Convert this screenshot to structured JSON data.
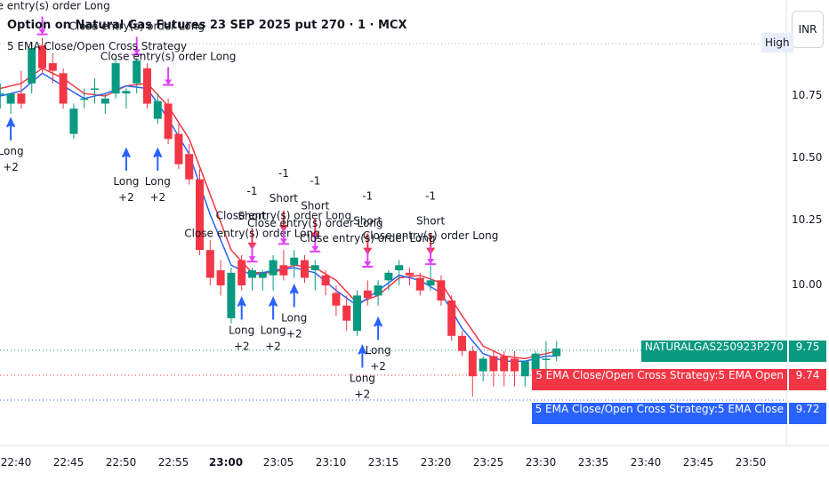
{
  "header": {
    "title": "Option on Natural Gas Futures 23 SEP 2025 put 270 · 1 · MCX",
    "indicator": "5 EMA Close/Open Cross Strategy"
  },
  "currency_button": "INR",
  "high_label": "High",
  "price_tags": [
    {
      "name": "NATURALGAS250923P270",
      "value": "9.75",
      "color": "#089981"
    },
    {
      "name": "5 EMA Close/Open Cross Strategy:5 EMA Open",
      "value": "9.74",
      "color": "#f23645"
    },
    {
      "name": "5 EMA Close/Open Cross Strategy:5 EMA Close",
      "value": "9.72",
      "color": "#2962ff"
    }
  ],
  "colors": {
    "up": "#089981",
    "down": "#f23645",
    "ema_open": "#f23645",
    "ema_close": "#2962ff",
    "long_marker": "#2962ff",
    "short_marker": "#f23645",
    "close_marker": "#e040fb"
  },
  "chart_data": {
    "type": "candlestick",
    "y_ticks": [
      "10.75",
      "10.50",
      "10.25",
      "10.00"
    ],
    "ylim": [
      9.42,
      10.98
    ],
    "x_ticks": [
      {
        "label": "22:40",
        "minute": 0
      },
      {
        "label": "22:45",
        "minute": 5
      },
      {
        "label": "22:50",
        "minute": 10
      },
      {
        "label": "22:55",
        "minute": 15
      },
      {
        "label": "23:00",
        "minute": 20,
        "bold": true
      },
      {
        "label": "23:05",
        "minute": 25
      },
      {
        "label": "23:10",
        "minute": 30
      },
      {
        "label": "23:15",
        "minute": 35
      },
      {
        "label": "23:20",
        "minute": 40
      },
      {
        "label": "23:25",
        "minute": 45
      },
      {
        "label": "23:30",
        "minute": 50
      },
      {
        "label": "23:35",
        "minute": 55
      },
      {
        "label": "23:40",
        "minute": 60
      },
      {
        "label": "23:45",
        "minute": 65
      },
      {
        "label": "23:50",
        "minute": 70
      }
    ],
    "candles": [
      {
        "t": -1.5,
        "o": 10.76,
        "h": 10.8,
        "l": 10.7,
        "c": 10.76
      },
      {
        "t": -0.5,
        "o": 10.72,
        "h": 10.76,
        "l": 10.68,
        "c": 10.76
      },
      {
        "t": 0.5,
        "o": 10.76,
        "h": 10.85,
        "l": 10.7,
        "c": 10.72
      },
      {
        "t": 1.5,
        "o": 10.8,
        "h": 10.96,
        "l": 10.76,
        "c": 10.94
      },
      {
        "t": 2.5,
        "o": 10.95,
        "h": 10.98,
        "l": 10.84,
        "c": 10.86
      },
      {
        "t": 3.5,
        "o": 10.88,
        "h": 10.92,
        "l": 10.8,
        "c": 10.85
      },
      {
        "t": 4.5,
        "o": 10.84,
        "h": 10.86,
        "l": 10.7,
        "c": 10.72
      },
      {
        "t": 5.5,
        "o": 10.6,
        "h": 10.72,
        "l": 10.58,
        "c": 10.7
      },
      {
        "t": 6.5,
        "o": 10.74,
        "h": 10.78,
        "l": 10.7,
        "c": 10.74
      },
      {
        "t": 7.5,
        "o": 10.78,
        "h": 10.82,
        "l": 10.72,
        "c": 10.78
      },
      {
        "t": 8.5,
        "o": 10.72,
        "h": 10.76,
        "l": 10.68,
        "c": 10.74
      },
      {
        "t": 9.5,
        "o": 10.76,
        "h": 10.9,
        "l": 10.74,
        "c": 10.88
      },
      {
        "t": 10.5,
        "o": 10.76,
        "h": 10.78,
        "l": 10.7,
        "c": 10.77
      },
      {
        "t": 11.5,
        "o": 10.8,
        "h": 10.9,
        "l": 10.76,
        "c": 10.89
      },
      {
        "t": 12.5,
        "o": 10.86,
        "h": 10.88,
        "l": 10.7,
        "c": 10.72
      },
      {
        "t": 13.5,
        "o": 10.66,
        "h": 10.76,
        "l": 10.64,
        "c": 10.73
      },
      {
        "t": 14.5,
        "o": 10.72,
        "h": 10.74,
        "l": 10.56,
        "c": 10.58
      },
      {
        "t": 15.5,
        "o": 10.6,
        "h": 10.64,
        "l": 10.46,
        "c": 10.48
      },
      {
        "t": 16.5,
        "o": 10.52,
        "h": 10.56,
        "l": 10.4,
        "c": 10.42
      },
      {
        "t": 17.5,
        "o": 10.42,
        "h": 10.46,
        "l": 10.12,
        "c": 10.14
      },
      {
        "t": 18.5,
        "o": 10.14,
        "h": 10.18,
        "l": 10.0,
        "c": 10.03
      },
      {
        "t": 19.5,
        "o": 10.06,
        "h": 10.1,
        "l": 9.96,
        "c": 10.0
      },
      {
        "t": 20.5,
        "o": 9.87,
        "h": 10.07,
        "l": 9.85,
        "c": 10.05
      },
      {
        "t": 21.5,
        "o": 10.1,
        "h": 10.12,
        "l": 9.98,
        "c": 10.0
      },
      {
        "t": 22.5,
        "o": 10.03,
        "h": 10.07,
        "l": 9.98,
        "c": 10.06
      },
      {
        "t": 23.5,
        "o": 10.03,
        "h": 10.06,
        "l": 9.98,
        "c": 10.05
      },
      {
        "t": 24.5,
        "o": 10.04,
        "h": 10.12,
        "l": 9.98,
        "c": 10.1
      },
      {
        "t": 25.5,
        "o": 10.08,
        "h": 10.14,
        "l": 10.02,
        "c": 10.04
      },
      {
        "t": 26.5,
        "o": 10.08,
        "h": 10.14,
        "l": 10.03,
        "c": 10.11
      },
      {
        "t": 27.5,
        "o": 10.1,
        "h": 10.12,
        "l": 10.01,
        "c": 10.03
      },
      {
        "t": 28.5,
        "o": 10.06,
        "h": 10.1,
        "l": 9.98,
        "c": 10.08
      },
      {
        "t": 29.5,
        "o": 10.04,
        "h": 10.06,
        "l": 9.96,
        "c": 10.0
      },
      {
        "t": 30.5,
        "o": 9.97,
        "h": 10.0,
        "l": 9.88,
        "c": 9.92
      },
      {
        "t": 31.5,
        "o": 9.92,
        "h": 9.96,
        "l": 9.82,
        "c": 9.86
      },
      {
        "t": 32.5,
        "o": 9.82,
        "h": 9.98,
        "l": 9.8,
        "c": 9.96
      },
      {
        "t": 33.5,
        "o": 9.98,
        "h": 10.02,
        "l": 9.92,
        "c": 9.95
      },
      {
        "t": 34.5,
        "o": 9.96,
        "h": 10.02,
        "l": 9.92,
        "c": 10.0
      },
      {
        "t": 35.5,
        "o": 10.02,
        "h": 10.06,
        "l": 9.98,
        "c": 10.05
      },
      {
        "t": 36.5,
        "o": 10.06,
        "h": 10.1,
        "l": 10.0,
        "c": 10.08
      },
      {
        "t": 37.5,
        "o": 10.05,
        "h": 10.07,
        "l": 10.0,
        "c": 10.04
      },
      {
        "t": 38.5,
        "o": 10.03,
        "h": 10.05,
        "l": 9.96,
        "c": 9.98
      },
      {
        "t": 39.5,
        "o": 10.0,
        "h": 10.08,
        "l": 9.98,
        "c": 10.02
      },
      {
        "t": 40.5,
        "o": 10.02,
        "h": 10.04,
        "l": 9.92,
        "c": 9.94
      },
      {
        "t": 41.5,
        "o": 9.94,
        "h": 9.96,
        "l": 9.78,
        "c": 9.8
      },
      {
        "t": 42.5,
        "o": 9.8,
        "h": 9.82,
        "l": 9.72,
        "c": 9.74
      },
      {
        "t": 43.5,
        "o": 9.74,
        "h": 9.76,
        "l": 9.56,
        "c": 9.64
      },
      {
        "t": 44.5,
        "o": 9.66,
        "h": 9.72,
        "l": 9.62,
        "c": 9.71
      },
      {
        "t": 45.5,
        "o": 9.72,
        "h": 9.74,
        "l": 9.6,
        "c": 9.66
      },
      {
        "t": 46.5,
        "o": 9.72,
        "h": 9.74,
        "l": 9.6,
        "c": 9.66
      },
      {
        "t": 47.5,
        "o": 9.71,
        "h": 9.74,
        "l": 9.6,
        "c": 9.66
      },
      {
        "t": 48.5,
        "o": 9.64,
        "h": 9.7,
        "l": 9.6,
        "c": 9.7
      },
      {
        "t": 49.5,
        "o": 9.66,
        "h": 9.74,
        "l": 9.64,
        "c": 9.73
      },
      {
        "t": 50.5,
        "o": 9.71,
        "h": 9.78,
        "l": 9.64,
        "c": 9.71
      },
      {
        "t": 51.5,
        "o": 9.72,
        "h": 9.78,
        "l": 9.7,
        "c": 9.75
      }
    ],
    "ema_open": [
      {
        "t": -1.5,
        "v": 10.78
      },
      {
        "t": 0.5,
        "v": 10.8
      },
      {
        "t": 2.5,
        "v": 10.86
      },
      {
        "t": 4.5,
        "v": 10.82
      },
      {
        "t": 6.5,
        "v": 10.76
      },
      {
        "t": 8.5,
        "v": 10.75
      },
      {
        "t": 10.5,
        "v": 10.79
      },
      {
        "t": 12.5,
        "v": 10.8
      },
      {
        "t": 14.5,
        "v": 10.71
      },
      {
        "t": 16.5,
        "v": 10.58
      },
      {
        "t": 18.5,
        "v": 10.36
      },
      {
        "t": 20.5,
        "v": 10.14
      },
      {
        "t": 22.5,
        "v": 10.05
      },
      {
        "t": 24.5,
        "v": 10.05
      },
      {
        "t": 26.5,
        "v": 10.08
      },
      {
        "t": 28.5,
        "v": 10.07
      },
      {
        "t": 30.5,
        "v": 10.02
      },
      {
        "t": 32.5,
        "v": 9.93
      },
      {
        "t": 34.5,
        "v": 9.96
      },
      {
        "t": 36.5,
        "v": 10.03
      },
      {
        "t": 38.5,
        "v": 10.04
      },
      {
        "t": 40.5,
        "v": 10.01
      },
      {
        "t": 42.5,
        "v": 9.88
      },
      {
        "t": 44.5,
        "v": 9.76
      },
      {
        "t": 46.5,
        "v": 9.72
      },
      {
        "t": 48.5,
        "v": 9.71
      },
      {
        "t": 50.5,
        "v": 9.73
      },
      {
        "t": 51.5,
        "v": 9.74
      }
    ],
    "ema_close": [
      {
        "t": -1.5,
        "v": 10.75
      },
      {
        "t": 0.5,
        "v": 10.77
      },
      {
        "t": 2.5,
        "v": 10.84
      },
      {
        "t": 4.5,
        "v": 10.79
      },
      {
        "t": 6.5,
        "v": 10.74
      },
      {
        "t": 8.5,
        "v": 10.76
      },
      {
        "t": 10.5,
        "v": 10.79
      },
      {
        "t": 12.5,
        "v": 10.78
      },
      {
        "t": 14.5,
        "v": 10.66
      },
      {
        "t": 16.5,
        "v": 10.52
      },
      {
        "t": 18.5,
        "v": 10.28
      },
      {
        "t": 20.5,
        "v": 10.08
      },
      {
        "t": 22.5,
        "v": 10.04
      },
      {
        "t": 24.5,
        "v": 10.06
      },
      {
        "t": 26.5,
        "v": 10.07
      },
      {
        "t": 28.5,
        "v": 10.05
      },
      {
        "t": 30.5,
        "v": 9.98
      },
      {
        "t": 32.5,
        "v": 9.92
      },
      {
        "t": 34.5,
        "v": 9.98
      },
      {
        "t": 36.5,
        "v": 10.04
      },
      {
        "t": 38.5,
        "v": 10.02
      },
      {
        "t": 40.5,
        "v": 9.97
      },
      {
        "t": 42.5,
        "v": 9.83
      },
      {
        "t": 44.5,
        "v": 9.73
      },
      {
        "t": 46.5,
        "v": 9.7
      },
      {
        "t": 48.5,
        "v": 9.7
      },
      {
        "t": 50.5,
        "v": 9.72
      },
      {
        "t": 51.5,
        "v": 9.72
      }
    ],
    "long_signals": [
      {
        "t": -0.5,
        "price": 10.68,
        "lines": [
          "Long",
          "+2"
        ]
      },
      {
        "t": 10.5,
        "price": 10.56,
        "lines": [
          "Long",
          "+2"
        ]
      },
      {
        "t": 13.5,
        "price": 10.56,
        "lines": [
          "Long",
          "+2"
        ]
      },
      {
        "t": 21.5,
        "price": 9.97,
        "lines": [
          "Long",
          "+2"
        ]
      },
      {
        "t": 24.5,
        "price": 9.97,
        "lines": [
          "Long",
          "+2"
        ]
      },
      {
        "t": 26.5,
        "price": 10.02,
        "lines": [
          "Long",
          "+2"
        ]
      },
      {
        "t": 33,
        "price": 9.78,
        "lines": [
          "Long",
          "+2"
        ]
      },
      {
        "t": 34.5,
        "price": 9.89,
        "lines": [
          "Long",
          "+2"
        ]
      }
    ],
    "short_signals": [
      {
        "t": 22.5,
        "price": 10.12,
        "lines": [
          "-1",
          "Short"
        ]
      },
      {
        "t": 25.5,
        "price": 10.19,
        "lines": [
          "-1",
          "Short"
        ]
      },
      {
        "t": 28.5,
        "price": 10.16,
        "lines": [
          "-1",
          "Short"
        ]
      },
      {
        "t": 33.5,
        "price": 10.1,
        "lines": [
          "-1",
          "Short"
        ]
      },
      {
        "t": 39.5,
        "price": 10.1,
        "lines": [
          "-1",
          "Short"
        ]
      }
    ],
    "close_signals": [
      {
        "t": 2.5,
        "price": 10.98,
        "lines": [
          "Close entry(s) order Long"
        ]
      },
      {
        "t": 11.5,
        "price": 10.9,
        "lines": [
          "Close entry(s) order Long"
        ]
      },
      {
        "t": 14.5,
        "price": 10.78,
        "lines": [
          "Close entry(s) order Long"
        ]
      },
      {
        "t": 22.5,
        "price": 10.08,
        "lines": [
          "Close entry(s) order Long"
        ]
      },
      {
        "t": 25.5,
        "price": 10.15,
        "lines": [
          "Close entry(s) order Long"
        ]
      },
      {
        "t": 28.5,
        "price": 10.12,
        "lines": [
          "Close entry(s) order Long"
        ]
      },
      {
        "t": 33.5,
        "price": 10.06,
        "lines": [
          "Close entry(s) order Long"
        ]
      },
      {
        "t": 39.5,
        "price": 10.07,
        "lines": [
          "Close entry(s) order Long"
        ]
      }
    ]
  }
}
